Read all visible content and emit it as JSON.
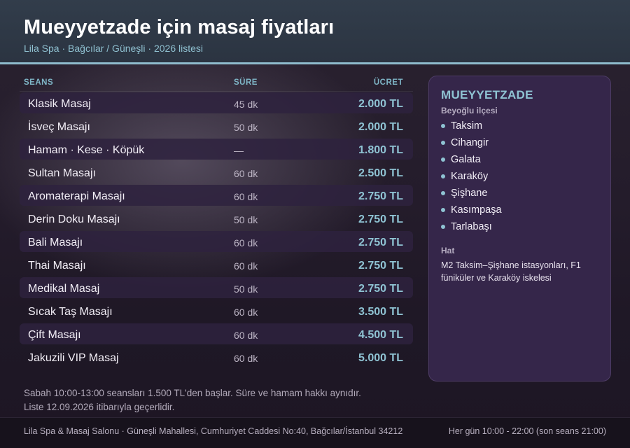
{
  "header": {
    "title": "Mueyyetzade için masaj fiyatları",
    "subtitle": "Lila Spa · Bağcılar / Güneşli · 2026 listesi"
  },
  "table": {
    "columns": {
      "seans": "SEANS",
      "sure": "SÜRE",
      "ucret": "ÜCRET"
    },
    "rows": [
      {
        "name": "Klasik Masaj",
        "duration": "45 dk",
        "price": "2.000 TL"
      },
      {
        "name": "İsveç Masajı",
        "duration": "50 dk",
        "price": "2.000 TL"
      },
      {
        "name": "Hamam · Kese · Köpük",
        "duration": "—",
        "price": "1.800 TL"
      },
      {
        "name": "Sultan Masajı",
        "duration": "60 dk",
        "price": "2.500 TL"
      },
      {
        "name": "Aromaterapi Masajı",
        "duration": "60 dk",
        "price": "2.750 TL"
      },
      {
        "name": "Derin Doku Masajı",
        "duration": "50 dk",
        "price": "2.750 TL"
      },
      {
        "name": "Bali Masajı",
        "duration": "60 dk",
        "price": "2.750 TL"
      },
      {
        "name": "Thai Masajı",
        "duration": "60 dk",
        "price": "2.750 TL"
      },
      {
        "name": "Medikal Masaj",
        "duration": "50 dk",
        "price": "2.750 TL"
      },
      {
        "name": "Sıcak Taş Masajı",
        "duration": "60 dk",
        "price": "3.500 TL"
      },
      {
        "name": "Çift Masajı",
        "duration": "60 dk",
        "price": "4.500 TL"
      },
      {
        "name": "Jakuzili VIP Masaj",
        "duration": "60 dk",
        "price": "5.000 TL"
      }
    ]
  },
  "notes": {
    "line1": "Sabah 10:00-13:00 seansları 1.500 TL'den başlar. Süre ve hamam hakkı aynıdır.",
    "line2": "Liste 12.09.2026 itibarıyla geçerlidir."
  },
  "card": {
    "title": "MUEYYETZADE",
    "subtitle": "Beyoğlu ilçesi",
    "districts": [
      "Taksim",
      "Cihangir",
      "Galata",
      "Karaköy",
      "Şişhane",
      "Kasımpaşa",
      "Tarlabaşı"
    ],
    "hat_label": "Hat",
    "hat_text": "M2 Taksim–Şişhane istasyonları, F1 füniküler ve Karaköy iskelesi"
  },
  "footer": {
    "address": "Lila Spa & Masaj Salonu · Güneşli Mahallesi, Cumhuriyet Caddesi No:40, Bağcılar/İstanbul 34212",
    "hours": "Her gün 10:00 - 22:00 (son seans 21:00)"
  },
  "colors": {
    "accent": "#8fc3d3",
    "header_bg": "#323d4b",
    "card_bg": "#35264a",
    "row_alt_bg": "#2e223e"
  }
}
